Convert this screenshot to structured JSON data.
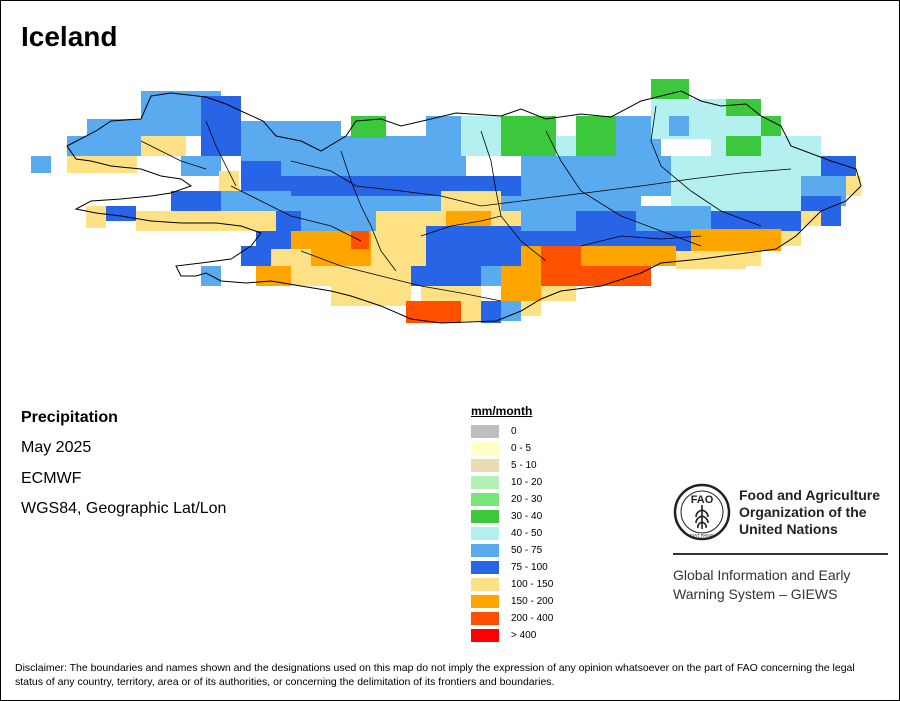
{
  "map": {
    "title": "Iceland",
    "product": "Precipitation",
    "date": "May 2025",
    "model": "ECMWF",
    "projection": "WGS84, Geographic Lat/Lon"
  },
  "legend": {
    "unit_label": "mm/month",
    "classes": [
      {
        "label": "0",
        "color": "#bebebe"
      },
      {
        "label": "0 - 5",
        "color": "#ffffc8"
      },
      {
        "label": "5 - 10",
        "color": "#ebdcb4"
      },
      {
        "label": "10 - 20",
        "color": "#b4f0b4"
      },
      {
        "label": "20 - 30",
        "color": "#78e678"
      },
      {
        "label": "30 - 40",
        "color": "#3cc83c"
      },
      {
        "label": "40 - 50",
        "color": "#b4f0f0"
      },
      {
        "label": "50 - 75",
        "color": "#5aaaf0"
      },
      {
        "label": "75 - 100",
        "color": "#2864e6"
      },
      {
        "label": "100 - 150",
        "color": "#ffe185"
      },
      {
        "label": "150 - 200",
        "color": "#ffa500"
      },
      {
        "label": "200 - 400",
        "color": "#ff5000"
      },
      {
        "label": "> 400",
        "color": "#ff0000"
      }
    ]
  },
  "organization": {
    "name": "Food and Agriculture\nOrganization of the\nUnited Nations",
    "logo_acronym": "FAO",
    "logo_motto": "FIAT PANIS",
    "giews": "Global Information and Early\nWarning System – GIEWS"
  },
  "disclaimer": "Disclaimer: The boundaries and names shown and the designations used on this map do not imply the expression of any opinion whatsoever on the part of FAO concerning the legal status of any country, territory, area or of its authorities, or concerning the delimitation of its frontiers and boundaries."
}
